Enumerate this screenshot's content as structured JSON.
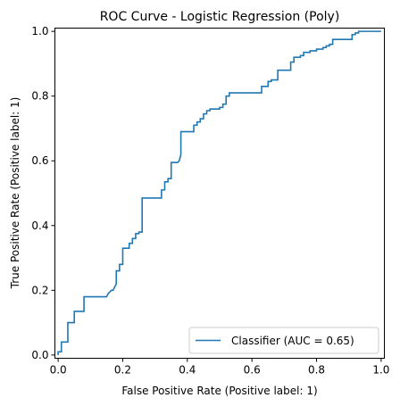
{
  "colors": {
    "series": "#1f77b4",
    "axes": "#000000",
    "legend_border": "#cccccc"
  },
  "chart_data": {
    "type": "line",
    "title": "ROC Curve - Logistic Regression (Poly)",
    "xlabel": "False Positive Rate (Positive label: 1)",
    "ylabel": "True Positive Rate (Positive label: 1)",
    "xlim": [
      -0.01,
      1.01
    ],
    "ylim": [
      -0.01,
      1.01
    ],
    "xticks": [
      "0.0",
      "0.2",
      "0.4",
      "0.6",
      "0.8",
      "1.0"
    ],
    "yticks": [
      "0.0",
      "0.2",
      "0.4",
      "0.6",
      "0.8",
      "1.0"
    ],
    "legend_position": "lower-right",
    "grid": false,
    "series": [
      {
        "name": "Classifier (AUC = 0.65)",
        "x": [
          0.0,
          0.0,
          0.01,
          0.01,
          0.03,
          0.03,
          0.05,
          0.05,
          0.08,
          0.08,
          0.1,
          0.1,
          0.15,
          0.155,
          0.165,
          0.17,
          0.18,
          0.18,
          0.19,
          0.19,
          0.2,
          0.2,
          0.22,
          0.22,
          0.23,
          0.23,
          0.24,
          0.24,
          0.25,
          0.25,
          0.26,
          0.26,
          0.27,
          0.27,
          0.32,
          0.32,
          0.33,
          0.33,
          0.34,
          0.34,
          0.35,
          0.35,
          0.37,
          0.375,
          0.38,
          0.38,
          0.42,
          0.42,
          0.43,
          0.43,
          0.44,
          0.44,
          0.45,
          0.45,
          0.46,
          0.46,
          0.47,
          0.47,
          0.5,
          0.5,
          0.51,
          0.51,
          0.52,
          0.52,
          0.53,
          0.53,
          0.55,
          0.55,
          0.63,
          0.63,
          0.65,
          0.65,
          0.66,
          0.66,
          0.68,
          0.68,
          0.7,
          0.7,
          0.72,
          0.72,
          0.73,
          0.73,
          0.75,
          0.75,
          0.76,
          0.76,
          0.78,
          0.78,
          0.8,
          0.8,
          0.82,
          0.82,
          0.83,
          0.83,
          0.84,
          0.84,
          0.85,
          0.85,
          0.87,
          0.87,
          0.91,
          0.91,
          0.92,
          0.92,
          0.93,
          0.93,
          0.95,
          0.95,
          1.0
        ],
        "y": [
          0.0,
          0.01,
          0.01,
          0.04,
          0.04,
          0.1,
          0.1,
          0.135,
          0.135,
          0.18,
          0.18,
          0.18,
          0.18,
          0.19,
          0.2,
          0.2,
          0.22,
          0.26,
          0.26,
          0.28,
          0.28,
          0.33,
          0.33,
          0.345,
          0.345,
          0.36,
          0.36,
          0.375,
          0.375,
          0.38,
          0.38,
          0.485,
          0.485,
          0.485,
          0.485,
          0.51,
          0.51,
          0.535,
          0.535,
          0.545,
          0.545,
          0.595,
          0.595,
          0.6,
          0.62,
          0.69,
          0.69,
          0.71,
          0.71,
          0.72,
          0.72,
          0.73,
          0.73,
          0.745,
          0.745,
          0.755,
          0.755,
          0.76,
          0.76,
          0.765,
          0.765,
          0.775,
          0.775,
          0.8,
          0.8,
          0.81,
          0.81,
          0.81,
          0.81,
          0.83,
          0.83,
          0.845,
          0.845,
          0.85,
          0.85,
          0.88,
          0.88,
          0.88,
          0.88,
          0.905,
          0.905,
          0.92,
          0.92,
          0.925,
          0.925,
          0.935,
          0.935,
          0.94,
          0.94,
          0.945,
          0.945,
          0.95,
          0.95,
          0.955,
          0.955,
          0.96,
          0.96,
          0.975,
          0.975,
          0.975,
          0.975,
          0.99,
          0.99,
          0.995,
          0.995,
          1.0,
          1.0,
          1.0,
          1.0
        ]
      }
    ]
  }
}
